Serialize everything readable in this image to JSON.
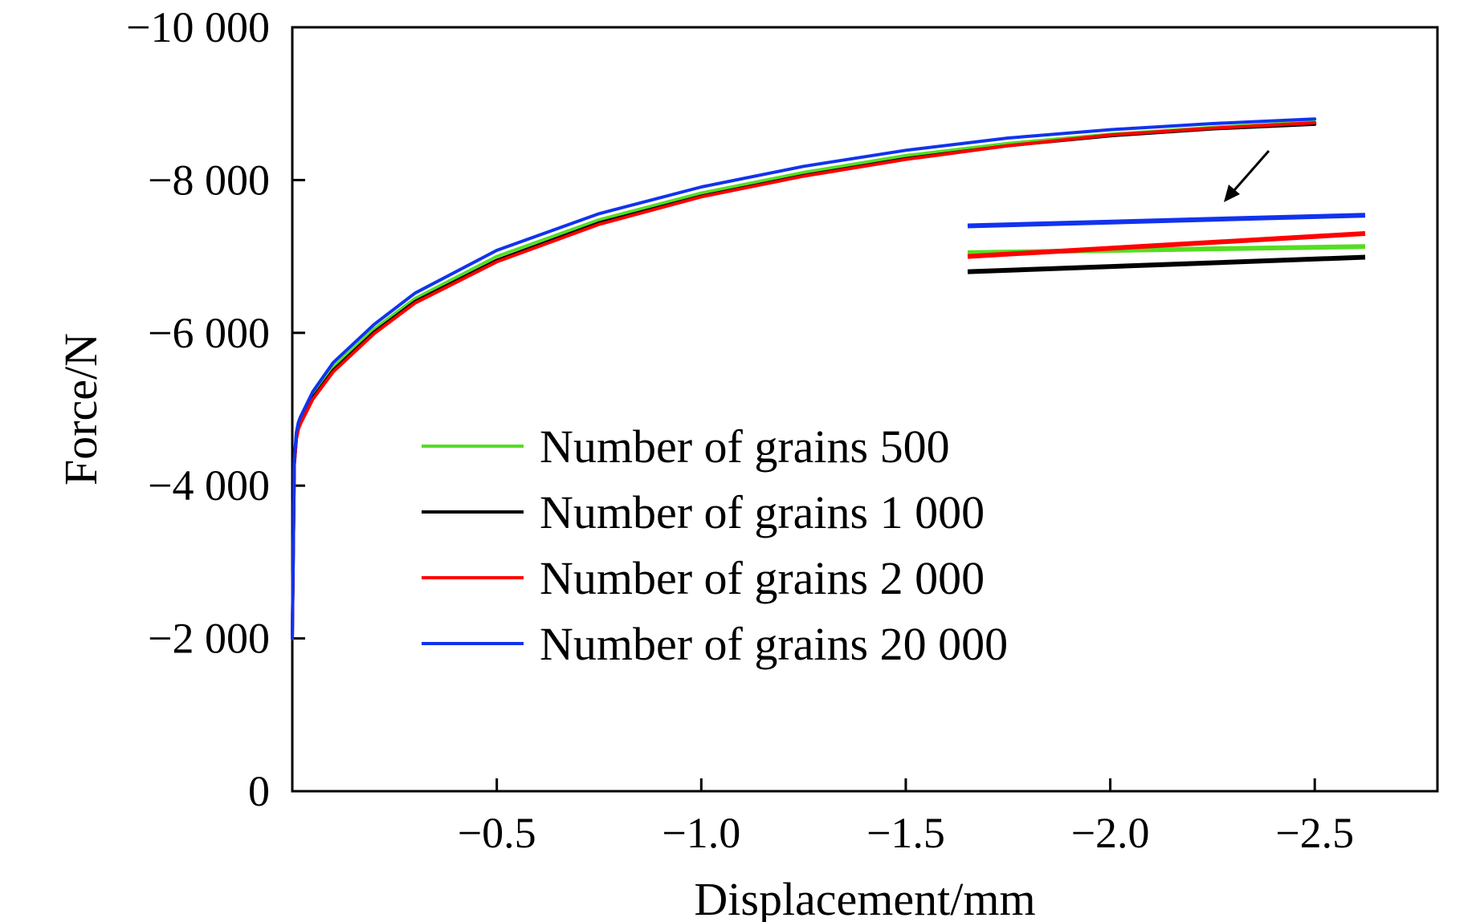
{
  "chart_data": {
    "type": "line",
    "xlabel": "Displacement/mm",
    "ylabel": "Force/N",
    "xlim": [
      0,
      -2.8
    ],
    "ylim": [
      0,
      -10000
    ],
    "x_ticks": [
      {
        "value": -0.5,
        "label": "−0.5"
      },
      {
        "value": -1.0,
        "label": "−1.0"
      },
      {
        "value": -1.5,
        "label": "−1.5"
      },
      {
        "value": -2.0,
        "label": "−2.0"
      },
      {
        "value": -2.5,
        "label": "−2.5"
      }
    ],
    "y_ticks": [
      {
        "value": 0,
        "label": "0"
      },
      {
        "value": -2000,
        "label": "−2 000"
      },
      {
        "value": -4000,
        "label": "−4 000"
      },
      {
        "value": -6000,
        "label": "−6 000"
      },
      {
        "value": -8000,
        "label": "−8 000"
      },
      {
        "value": -10000,
        "label": "−10 000"
      }
    ],
    "legend_position": "center-left",
    "series": [
      {
        "name": "Number of grains 500",
        "color": "#55dd22",
        "x": [
          0,
          -0.005,
          -0.01,
          -0.015,
          -0.02,
          -0.05,
          -0.1,
          -0.2,
          -0.3,
          -0.5,
          -0.75,
          -1.0,
          -1.25,
          -1.5,
          -1.75,
          -2.0,
          -2.25,
          -2.5
        ],
        "y": [
          -2000,
          -4300,
          -4650,
          -4780,
          -4850,
          -5180,
          -5550,
          -6050,
          -6450,
          -7000,
          -7480,
          -7830,
          -8100,
          -8320,
          -8480,
          -8600,
          -8690,
          -8760
        ],
        "zoom_y": [
          -7050,
          -7130
        ]
      },
      {
        "name": "Number of grains 1 000",
        "color": "#000000",
        "x": [
          0,
          -0.005,
          -0.01,
          -0.015,
          -0.02,
          -0.05,
          -0.1,
          -0.2,
          -0.3,
          -0.5,
          -0.75,
          -1.0,
          -1.25,
          -1.5,
          -1.75,
          -2.0,
          -2.25,
          -2.5
        ],
        "y": [
          -2000,
          -4280,
          -4620,
          -4750,
          -4820,
          -5150,
          -5510,
          -6010,
          -6410,
          -6950,
          -7440,
          -7790,
          -8060,
          -8280,
          -8450,
          -8580,
          -8670,
          -8730
        ],
        "zoom_y": [
          -6800,
          -6990
        ]
      },
      {
        "name": "Number of grains 2 000",
        "color": "#ff0000",
        "x": [
          0,
          -0.005,
          -0.01,
          -0.015,
          -0.02,
          -0.05,
          -0.1,
          -0.2,
          -0.3,
          -0.5,
          -0.75,
          -1.0,
          -1.25,
          -1.5,
          -1.75,
          -2.0,
          -2.25,
          -2.5
        ],
        "y": [
          -2000,
          -4270,
          -4610,
          -4740,
          -4810,
          -5130,
          -5490,
          -5990,
          -6390,
          -6930,
          -7420,
          -7780,
          -8050,
          -8270,
          -8450,
          -8590,
          -8680,
          -8750
        ],
        "zoom_y": [
          -7000,
          -7300
        ]
      },
      {
        "name": "Number of grains 20 000",
        "color": "#1133ee",
        "x": [
          0,
          -0.005,
          -0.01,
          -0.015,
          -0.02,
          -0.05,
          -0.1,
          -0.2,
          -0.3,
          -0.5,
          -0.75,
          -1.0,
          -1.25,
          -1.5,
          -1.75,
          -2.0,
          -2.25,
          -2.5
        ],
        "y": [
          -2000,
          -4340,
          -4700,
          -4830,
          -4900,
          -5230,
          -5610,
          -6110,
          -6520,
          -7080,
          -7560,
          -7910,
          -8180,
          -8390,
          -8550,
          -8660,
          -8740,
          -8800
        ],
        "zoom_y": [
          -7400,
          -7540
        ]
      }
    ]
  }
}
